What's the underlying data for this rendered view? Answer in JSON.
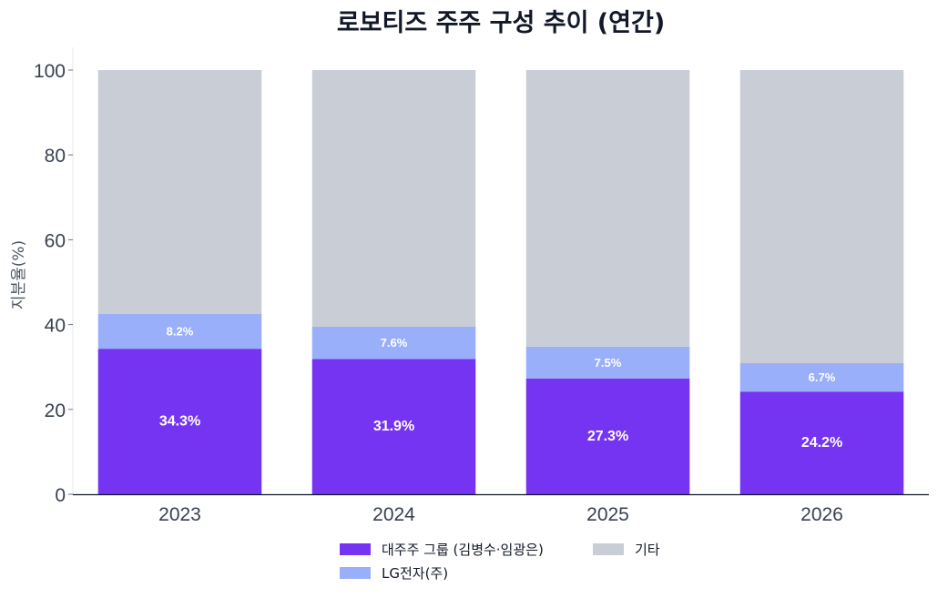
{
  "chart_data": {
    "type": "bar",
    "stacked": true,
    "title": "로보티즈 주주 구성 추이 (연간)",
    "xlabel": "",
    "ylabel": "지분율(%)",
    "ylim": [
      0,
      100
    ],
    "yticks": [
      "0",
      "20",
      "40",
      "60",
      "80",
      "100"
    ],
    "categories": [
      "2023",
      "2024",
      "2025",
      "2026"
    ],
    "series": [
      {
        "name": "대주주 그룹 (김병수·임광은)",
        "color": "#7534f1",
        "values": [
          34.3,
          31.9,
          27.3,
          24.2
        ],
        "labels": [
          "34.3%",
          "31.9%",
          "27.3%",
          "24.2%"
        ]
      },
      {
        "name": "LG전자(주)",
        "color": "#9aaffa",
        "values": [
          8.2,
          7.6,
          7.5,
          6.7
        ],
        "labels": [
          "8.2%",
          "7.6%",
          "7.5%",
          "6.7%"
        ]
      },
      {
        "name": "기타",
        "color": "#c9cdd6",
        "values": [
          57.5,
          60.5,
          65.2,
          69.1
        ]
      }
    ],
    "grid": false,
    "legend_position": "bottom-center"
  }
}
